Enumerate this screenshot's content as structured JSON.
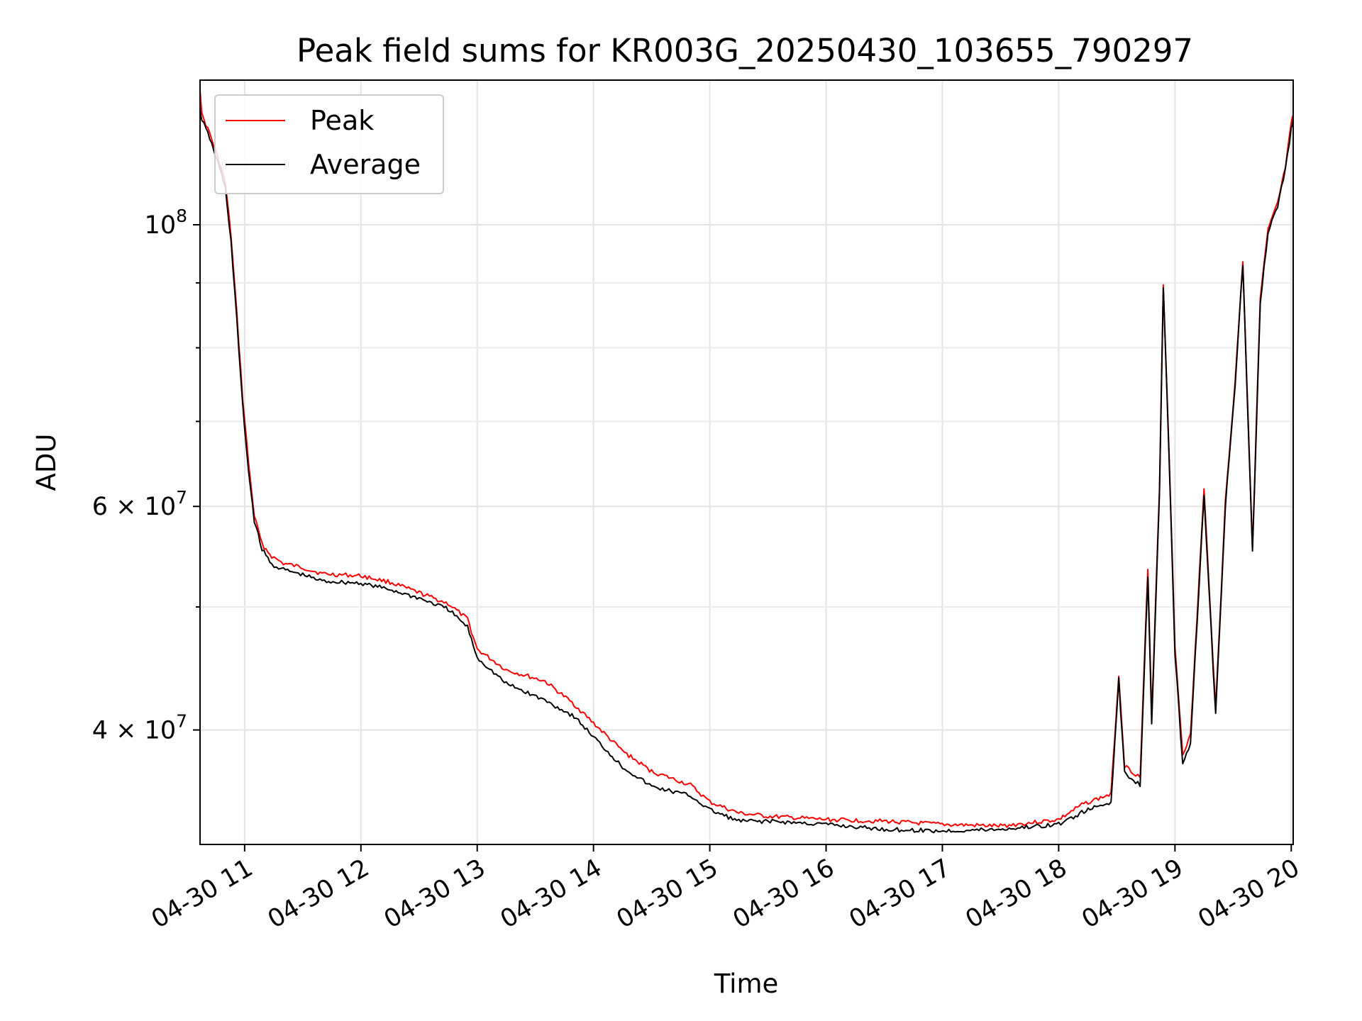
{
  "chart_data": {
    "type": "line",
    "title": "Peak field sums for KR003G_20250430_103655_790297",
    "xlabel": "Time",
    "ylabel": "ADU",
    "x_scale": "time",
    "y_scale": "log",
    "xlim": [
      "2025-04-30 10:37",
      "2025-04-30 20:01"
    ],
    "ylim": [
      32500000,
      130000000
    ],
    "grid": true,
    "legend": "top-left",
    "x_ticks": [
      {
        "t": "2025-04-30 11:00",
        "label": "04-30 11"
      },
      {
        "t": "2025-04-30 12:00",
        "label": "04-30 12"
      },
      {
        "t": "2025-04-30 13:00",
        "label": "04-30 13"
      },
      {
        "t": "2025-04-30 14:00",
        "label": "04-30 14"
      },
      {
        "t": "2025-04-30 15:00",
        "label": "04-30 15"
      },
      {
        "t": "2025-04-30 16:00",
        "label": "04-30 16"
      },
      {
        "t": "2025-04-30 17:00",
        "label": "04-30 17"
      },
      {
        "t": "2025-04-30 18:00",
        "label": "04-30 18"
      },
      {
        "t": "2025-04-30 19:00",
        "label": "04-30 19"
      },
      {
        "t": "2025-04-30 20:00",
        "label": "04-30 20"
      }
    ],
    "y_ticks": [
      {
        "value": 40000000,
        "label_base": "4 × 10",
        "label_exp": "7"
      },
      {
        "value": 60000000,
        "label_base": "6 × 10",
        "label_exp": "7"
      },
      {
        "value": 100000000,
        "label_base": "10",
        "label_exp": "8"
      }
    ],
    "y_minor_ticks": [
      50000000,
      70000000,
      80000000,
      90000000
    ],
    "series": [
      {
        "name": "Peak",
        "color": "#ff0000",
        "points": [
          [
            "2025-04-30 10:37",
            128000000
          ],
          [
            "2025-04-30 10:38",
            122000000
          ],
          [
            "2025-04-30 10:42",
            118000000
          ],
          [
            "2025-04-30 10:47",
            112000000
          ],
          [
            "2025-04-30 10:50",
            108000000
          ],
          [
            "2025-04-30 10:53",
            98000000
          ],
          [
            "2025-04-30 10:56",
            85000000
          ],
          [
            "2025-04-30 10:59",
            73000000
          ],
          [
            "2025-04-30 11:02",
            65000000
          ],
          [
            "2025-04-30 11:05",
            59000000
          ],
          [
            "2025-04-30 11:09",
            56000000
          ],
          [
            "2025-04-30 11:14",
            54800000
          ],
          [
            "2025-04-30 11:20",
            54100000
          ],
          [
            "2025-04-30 11:30",
            53700000
          ],
          [
            "2025-04-30 11:40",
            53100000
          ],
          [
            "2025-04-30 12:00",
            52900000
          ],
          [
            "2025-04-30 12:15",
            52300000
          ],
          [
            "2025-04-30 12:30",
            51300000
          ],
          [
            "2025-04-30 12:45",
            50300000
          ],
          [
            "2025-04-30 12:55",
            48900000
          ],
          [
            "2025-04-30 13:00",
            46300000
          ],
          [
            "2025-04-30 13:15",
            44600000
          ],
          [
            "2025-04-30 13:35",
            43700000
          ],
          [
            "2025-04-30 13:50",
            41900000
          ],
          [
            "2025-04-30 14:00",
            40500000
          ],
          [
            "2025-04-30 14:15",
            38500000
          ],
          [
            "2025-04-30 14:30",
            37100000
          ],
          [
            "2025-04-30 14:50",
            36200000
          ],
          [
            "2025-04-30 15:00",
            35100000
          ],
          [
            "2025-04-30 15:15",
            34400000
          ],
          [
            "2025-04-30 15:30",
            34200000
          ],
          [
            "2025-04-30 16:00",
            34000000
          ],
          [
            "2025-04-30 16:30",
            33900000
          ],
          [
            "2025-04-30 17:00",
            33700000
          ],
          [
            "2025-04-30 17:30",
            33600000
          ],
          [
            "2025-04-30 18:00",
            34000000
          ],
          [
            "2025-04-30 18:13",
            35000000
          ],
          [
            "2025-04-30 18:27",
            35600000
          ],
          [
            "2025-04-30 18:31",
            44200000
          ],
          [
            "2025-04-30 18:34",
            37500000
          ],
          [
            "2025-04-30 18:42",
            36700000
          ],
          [
            "2025-04-30 18:46",
            53500000
          ],
          [
            "2025-04-30 18:48",
            41100000
          ],
          [
            "2025-04-30 18:52",
            62000000
          ],
          [
            "2025-04-30 18:54",
            89500000
          ],
          [
            "2025-04-30 18:57",
            66000000
          ],
          [
            "2025-04-30 19:00",
            46500000
          ],
          [
            "2025-04-30 19:04",
            38300000
          ],
          [
            "2025-04-30 19:08",
            39600000
          ],
          [
            "2025-04-30 19:15",
            61800000
          ],
          [
            "2025-04-30 19:21",
            41600000
          ],
          [
            "2025-04-30 19:26",
            60500000
          ],
          [
            "2025-04-30 19:31",
            75100000
          ],
          [
            "2025-04-30 19:35",
            93700000
          ],
          [
            "2025-04-30 19:40",
            55700000
          ],
          [
            "2025-04-30 19:44",
            87500000
          ],
          [
            "2025-04-30 19:48",
            99000000
          ],
          [
            "2025-04-30 19:53",
            104000000
          ],
          [
            "2025-04-30 19:57",
            111000000
          ],
          [
            "2025-04-30 20:00",
            120000000
          ],
          [
            "2025-04-30 20:01",
            122000000
          ]
        ]
      },
      {
        "name": "Average",
        "color": "#000000",
        "points": [
          [
            "2025-04-30 10:37",
            123000000
          ],
          [
            "2025-04-30 10:38",
            121000000
          ],
          [
            "2025-04-30 10:42",
            117000000
          ],
          [
            "2025-04-30 10:47",
            111000000
          ],
          [
            "2025-04-30 10:50",
            107000000
          ],
          [
            "2025-04-30 10:53",
            97000000
          ],
          [
            "2025-04-30 10:56",
            84000000
          ],
          [
            "2025-04-30 10:59",
            72000000
          ],
          [
            "2025-04-30 11:02",
            64000000
          ],
          [
            "2025-04-30 11:05",
            58500000
          ],
          [
            "2025-04-30 11:09",
            55500000
          ],
          [
            "2025-04-30 11:14",
            54000000
          ],
          [
            "2025-04-30 11:20",
            53500000
          ],
          [
            "2025-04-30 11:30",
            53000000
          ],
          [
            "2025-04-30 11:40",
            52400000
          ],
          [
            "2025-04-30 12:00",
            52200000
          ],
          [
            "2025-04-30 12:15",
            51600000
          ],
          [
            "2025-04-30 12:30",
            50800000
          ],
          [
            "2025-04-30 12:45",
            49800000
          ],
          [
            "2025-04-30 12:55",
            48200000
          ],
          [
            "2025-04-30 13:00",
            45600000
          ],
          [
            "2025-04-30 13:15",
            43500000
          ],
          [
            "2025-04-30 13:35",
            42200000
          ],
          [
            "2025-04-30 13:50",
            41000000
          ],
          [
            "2025-04-30 14:00",
            39500000
          ],
          [
            "2025-04-30 14:15",
            37400000
          ],
          [
            "2025-04-30 14:30",
            36100000
          ],
          [
            "2025-04-30 14:50",
            35500000
          ],
          [
            "2025-04-30 15:00",
            34600000
          ],
          [
            "2025-04-30 15:15",
            33900000
          ],
          [
            "2025-04-30 15:30",
            33900000
          ],
          [
            "2025-04-30 16:00",
            33700000
          ],
          [
            "2025-04-30 16:30",
            33400000
          ],
          [
            "2025-04-30 17:00",
            33300000
          ],
          [
            "2025-04-30 17:30",
            33400000
          ],
          [
            "2025-04-30 18:00",
            33700000
          ],
          [
            "2025-04-30 18:13",
            34500000
          ],
          [
            "2025-04-30 18:27",
            35100000
          ],
          [
            "2025-04-30 18:31",
            43800000
          ],
          [
            "2025-04-30 18:34",
            37000000
          ],
          [
            "2025-04-30 18:42",
            36200000
          ],
          [
            "2025-04-30 18:46",
            53000000
          ],
          [
            "2025-04-30 18:48",
            40600000
          ],
          [
            "2025-04-30 18:52",
            61500000
          ],
          [
            "2025-04-30 18:54",
            89000000
          ],
          [
            "2025-04-30 18:57",
            65500000
          ],
          [
            "2025-04-30 19:00",
            46000000
          ],
          [
            "2025-04-30 19:04",
            37600000
          ],
          [
            "2025-04-30 19:08",
            39100000
          ],
          [
            "2025-04-30 19:15",
            61300000
          ],
          [
            "2025-04-30 19:21",
            41100000
          ],
          [
            "2025-04-30 19:26",
            60000000
          ],
          [
            "2025-04-30 19:31",
            74600000
          ],
          [
            "2025-04-30 19:35",
            93200000
          ],
          [
            "2025-04-30 19:40",
            55200000
          ],
          [
            "2025-04-30 19:44",
            87000000
          ],
          [
            "2025-04-30 19:48",
            98500000
          ],
          [
            "2025-04-30 19:53",
            103500000
          ],
          [
            "2025-04-30 19:57",
            110500000
          ],
          [
            "2025-04-30 20:00",
            119000000
          ],
          [
            "2025-04-30 20:01",
            121000000
          ]
        ]
      }
    ]
  }
}
